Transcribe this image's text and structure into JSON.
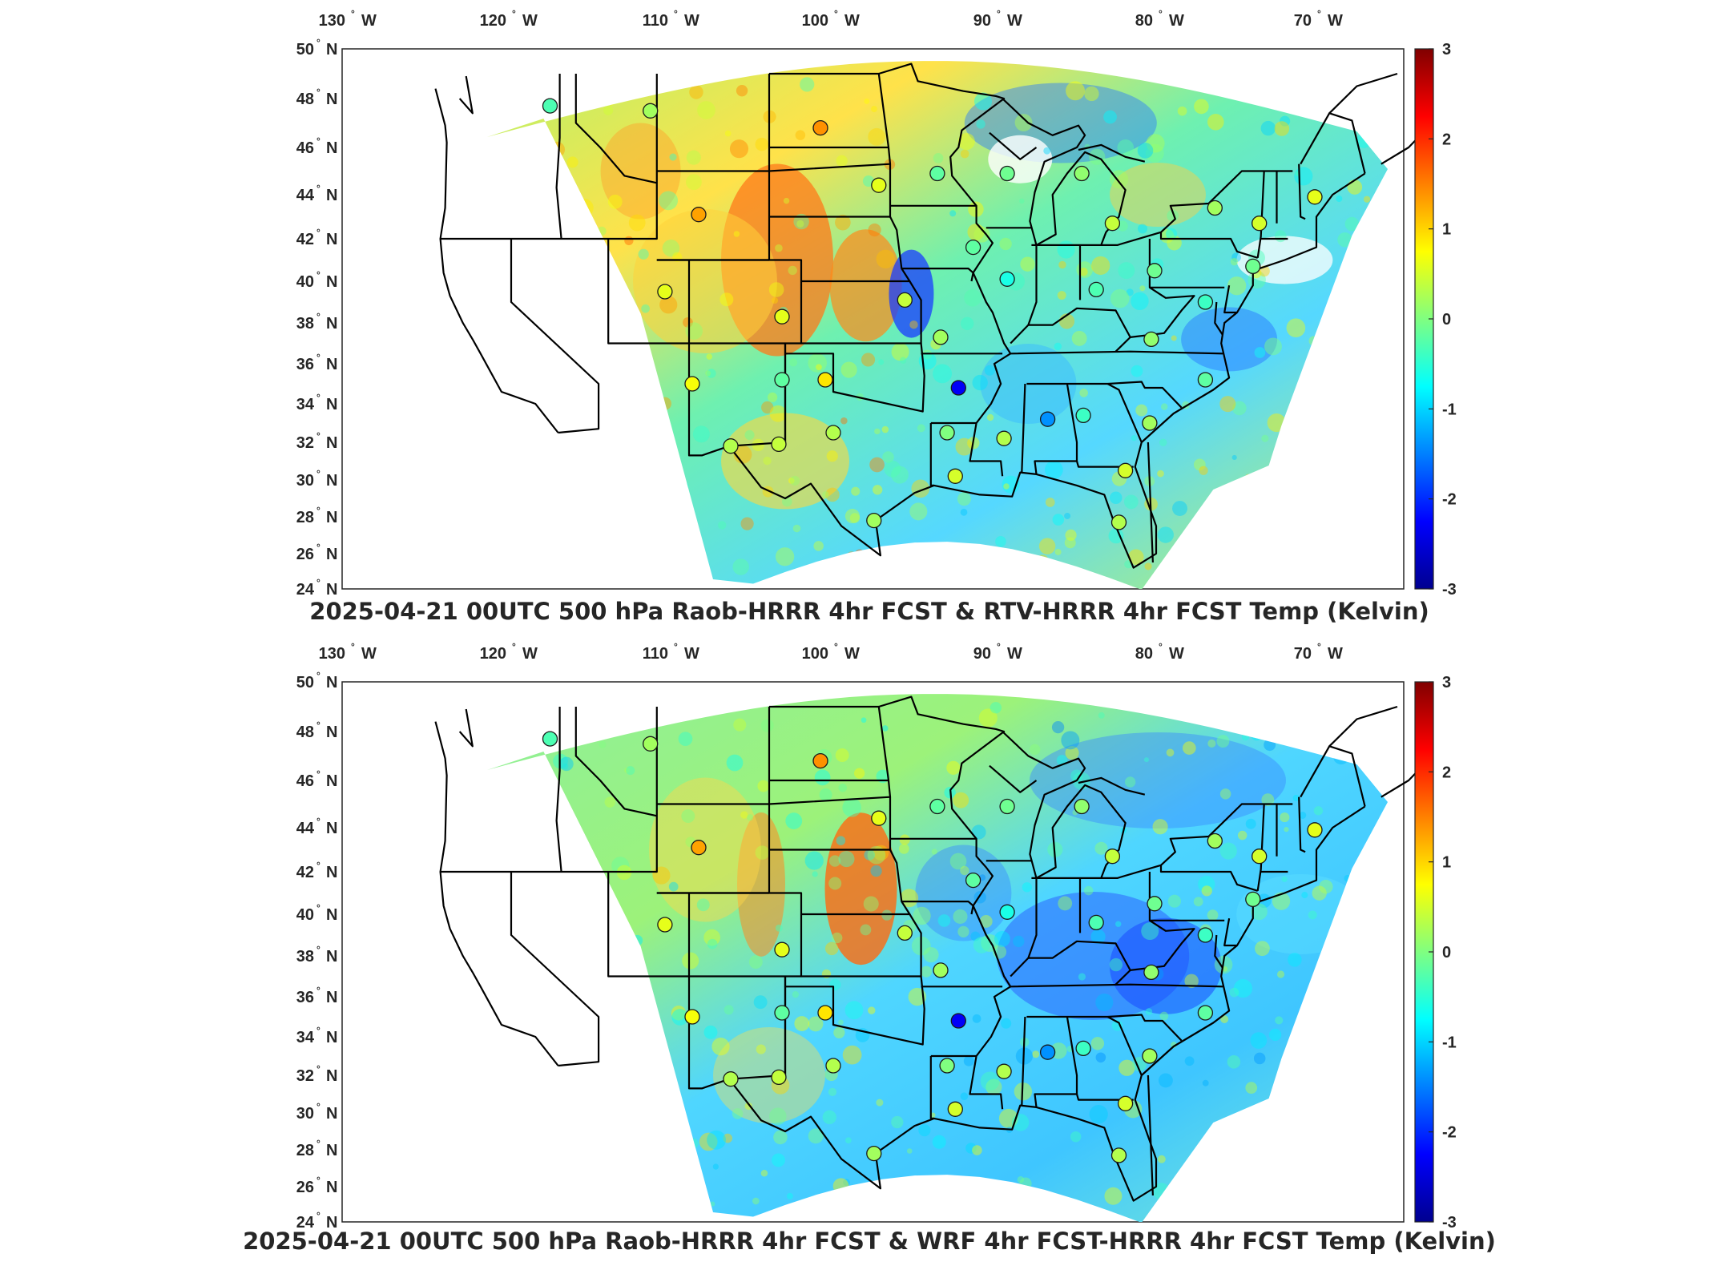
{
  "colormap": [
    "#00008f",
    "#0000ff",
    "#0080ff",
    "#00ffff",
    "#80ff80",
    "#ffff00",
    "#ff8000",
    "#ff0000",
    "#800000"
  ],
  "colorbar": {
    "min": -3,
    "max": 3,
    "ticks": [
      "3",
      "2",
      "1",
      "0",
      "-1",
      "-2",
      "-3"
    ]
  },
  "lon_labels": [
    {
      "deg": "130",
      "hemi": "W"
    },
    {
      "deg": "120",
      "hemi": "W"
    },
    {
      "deg": "110",
      "hemi": "W"
    },
    {
      "deg": "100",
      "hemi": "W"
    },
    {
      "deg": "90",
      "hemi": "W"
    },
    {
      "deg": "80",
      "hemi": "W"
    },
    {
      "deg": "70",
      "hemi": "W"
    }
  ],
  "lat_labels": [
    {
      "deg": "50",
      "hemi": "N"
    },
    {
      "deg": "48",
      "hemi": "N"
    },
    {
      "deg": "46",
      "hemi": "N"
    },
    {
      "deg": "44",
      "hemi": "N"
    },
    {
      "deg": "42",
      "hemi": "N"
    },
    {
      "deg": "40",
      "hemi": "N"
    },
    {
      "deg": "38",
      "hemi": "N"
    },
    {
      "deg": "36",
      "hemi": "N"
    },
    {
      "deg": "34",
      "hemi": "N"
    },
    {
      "deg": "32",
      "hemi": "N"
    },
    {
      "deg": "30",
      "hemi": "N"
    },
    {
      "deg": "28",
      "hemi": "N"
    },
    {
      "deg": "26",
      "hemi": "N"
    },
    {
      "deg": "24",
      "hemi": "N"
    }
  ],
  "panels": [
    {
      "title": "2025-04-21 00UTC 500 hPa Raob-HRRR 4hr FCST & RTV-HRRR 4hr FCST Temp (Kelvin)",
      "stations": [
        {
          "lon": -117.6,
          "lat": 47.7,
          "v": -0.3
        },
        {
          "lon": -111.4,
          "lat": 47.5,
          "v": 0.2
        },
        {
          "lon": -100.8,
          "lat": 46.8,
          "v": 1.4
        },
        {
          "lon": -97.2,
          "lat": 44.4,
          "v": 0.6
        },
        {
          "lon": -93.6,
          "lat": 44.9,
          "v": -0.2
        },
        {
          "lon": -108.4,
          "lat": 43.1,
          "v": 1.3
        },
        {
          "lon": -89.3,
          "lat": 44.9,
          "v": -0.1
        },
        {
          "lon": -84.7,
          "lat": 44.9,
          "v": 0.1
        },
        {
          "lon": -82.8,
          "lat": 42.7,
          "v": 0.4
        },
        {
          "lon": -76.4,
          "lat": 43.4,
          "v": 0.2
        },
        {
          "lon": -73.6,
          "lat": 42.7,
          "v": 0.5
        },
        {
          "lon": -70.1,
          "lat": 43.9,
          "v": 0.6
        },
        {
          "lon": -91.4,
          "lat": 41.6,
          "v": -0.2
        },
        {
          "lon": -89.3,
          "lat": 40.1,
          "v": -0.6
        },
        {
          "lon": -83.8,
          "lat": 39.6,
          "v": -0.3
        },
        {
          "lon": -80.2,
          "lat": 40.5,
          "v": -0.1
        },
        {
          "lon": -77.0,
          "lat": 39.0,
          "v": -0.4
        },
        {
          "lon": -74.0,
          "lat": 40.7,
          "v": -0.1
        },
        {
          "lon": -110.5,
          "lat": 39.5,
          "v": 0.6
        },
        {
          "lon": -103.2,
          "lat": 38.3,
          "v": 0.6
        },
        {
          "lon": -95.6,
          "lat": 39.1,
          "v": 0.4
        },
        {
          "lon": -93.4,
          "lat": 37.3,
          "v": 0.2
        },
        {
          "lon": -80.4,
          "lat": 37.2,
          "v": 0.1
        },
        {
          "lon": -77.0,
          "lat": 35.2,
          "v": -0.2
        },
        {
          "lon": -108.8,
          "lat": 35.0,
          "v": 0.7
        },
        {
          "lon": -103.2,
          "lat": 35.2,
          "v": -0.2
        },
        {
          "lon": -100.5,
          "lat": 35.2,
          "v": 0.9
        },
        {
          "lon": -92.3,
          "lat": 34.8,
          "v": -2.3
        },
        {
          "lon": -86.8,
          "lat": 33.2,
          "v": -1.4
        },
        {
          "lon": -84.6,
          "lat": 33.4,
          "v": -0.4
        },
        {
          "lon": -80.5,
          "lat": 33.0,
          "v": 0.2
        },
        {
          "lon": -100.0,
          "lat": 32.5,
          "v": 0.3
        },
        {
          "lon": -93.0,
          "lat": 32.5,
          "v": 0.0
        },
        {
          "lon": -89.5,
          "lat": 32.2,
          "v": 0.3
        },
        {
          "lon": -106.4,
          "lat": 31.8,
          "v": 0.3
        },
        {
          "lon": -103.4,
          "lat": 31.9,
          "v": 0.4
        },
        {
          "lon": -92.5,
          "lat": 30.2,
          "v": 0.5
        },
        {
          "lon": -82.0,
          "lat": 30.5,
          "v": 0.5
        },
        {
          "lon": -97.5,
          "lat": 27.8,
          "v": 0.2
        },
        {
          "lon": -82.4,
          "lat": 27.7,
          "v": 0.3
        }
      ]
    },
    {
      "title": "2025-04-21 00UTC 500 hPa Raob-HRRR 4hr FCST & WRF 4hr FCST-HRRR 4hr FCST Temp (Kelvin)",
      "stations": [
        {
          "lon": -117.6,
          "lat": 47.7,
          "v": -0.3
        },
        {
          "lon": -111.4,
          "lat": 47.5,
          "v": 0.2
        },
        {
          "lon": -100.8,
          "lat": 46.8,
          "v": 1.4
        },
        {
          "lon": -97.2,
          "lat": 44.4,
          "v": 0.6
        },
        {
          "lon": -93.6,
          "lat": 44.9,
          "v": -0.2
        },
        {
          "lon": -108.4,
          "lat": 43.1,
          "v": 1.3
        },
        {
          "lon": -89.3,
          "lat": 44.9,
          "v": -0.1
        },
        {
          "lon": -84.7,
          "lat": 44.9,
          "v": 0.1
        },
        {
          "lon": -82.8,
          "lat": 42.7,
          "v": 0.4
        },
        {
          "lon": -76.4,
          "lat": 43.4,
          "v": 0.2
        },
        {
          "lon": -73.6,
          "lat": 42.7,
          "v": 0.5
        },
        {
          "lon": -70.1,
          "lat": 43.9,
          "v": 0.6
        },
        {
          "lon": -91.4,
          "lat": 41.6,
          "v": -0.2
        },
        {
          "lon": -89.3,
          "lat": 40.1,
          "v": -0.6
        },
        {
          "lon": -83.8,
          "lat": 39.6,
          "v": -0.3
        },
        {
          "lon": -80.2,
          "lat": 40.5,
          "v": -0.1
        },
        {
          "lon": -77.0,
          "lat": 39.0,
          "v": -0.4
        },
        {
          "lon": -74.0,
          "lat": 40.7,
          "v": -0.1
        },
        {
          "lon": -110.5,
          "lat": 39.5,
          "v": 0.6
        },
        {
          "lon": -103.2,
          "lat": 38.3,
          "v": 0.6
        },
        {
          "lon": -95.6,
          "lat": 39.1,
          "v": 0.4
        },
        {
          "lon": -93.4,
          "lat": 37.3,
          "v": 0.2
        },
        {
          "lon": -80.4,
          "lat": 37.2,
          "v": 0.1
        },
        {
          "lon": -77.0,
          "lat": 35.2,
          "v": -0.2
        },
        {
          "lon": -108.8,
          "lat": 35.0,
          "v": 0.7
        },
        {
          "lon": -103.2,
          "lat": 35.2,
          "v": -0.2
        },
        {
          "lon": -100.5,
          "lat": 35.2,
          "v": 0.9
        },
        {
          "lon": -92.3,
          "lat": 34.8,
          "v": -2.3
        },
        {
          "lon": -86.8,
          "lat": 33.2,
          "v": -1.4
        },
        {
          "lon": -84.6,
          "lat": 33.4,
          "v": -0.4
        },
        {
          "lon": -80.5,
          "lat": 33.0,
          "v": 0.2
        },
        {
          "lon": -100.0,
          "lat": 32.5,
          "v": 0.3
        },
        {
          "lon": -93.0,
          "lat": 32.5,
          "v": 0.0
        },
        {
          "lon": -89.5,
          "lat": 32.2,
          "v": 0.3
        },
        {
          "lon": -106.4,
          "lat": 31.8,
          "v": 0.3
        },
        {
          "lon": -103.4,
          "lat": 31.9,
          "v": 0.4
        },
        {
          "lon": -92.5,
          "lat": 30.2,
          "v": 0.5
        },
        {
          "lon": -82.0,
          "lat": 30.5,
          "v": 0.5
        },
        {
          "lon": -97.5,
          "lat": 27.8,
          "v": 0.2
        },
        {
          "lon": -82.4,
          "lat": 27.7,
          "v": 0.3
        }
      ]
    }
  ]
}
